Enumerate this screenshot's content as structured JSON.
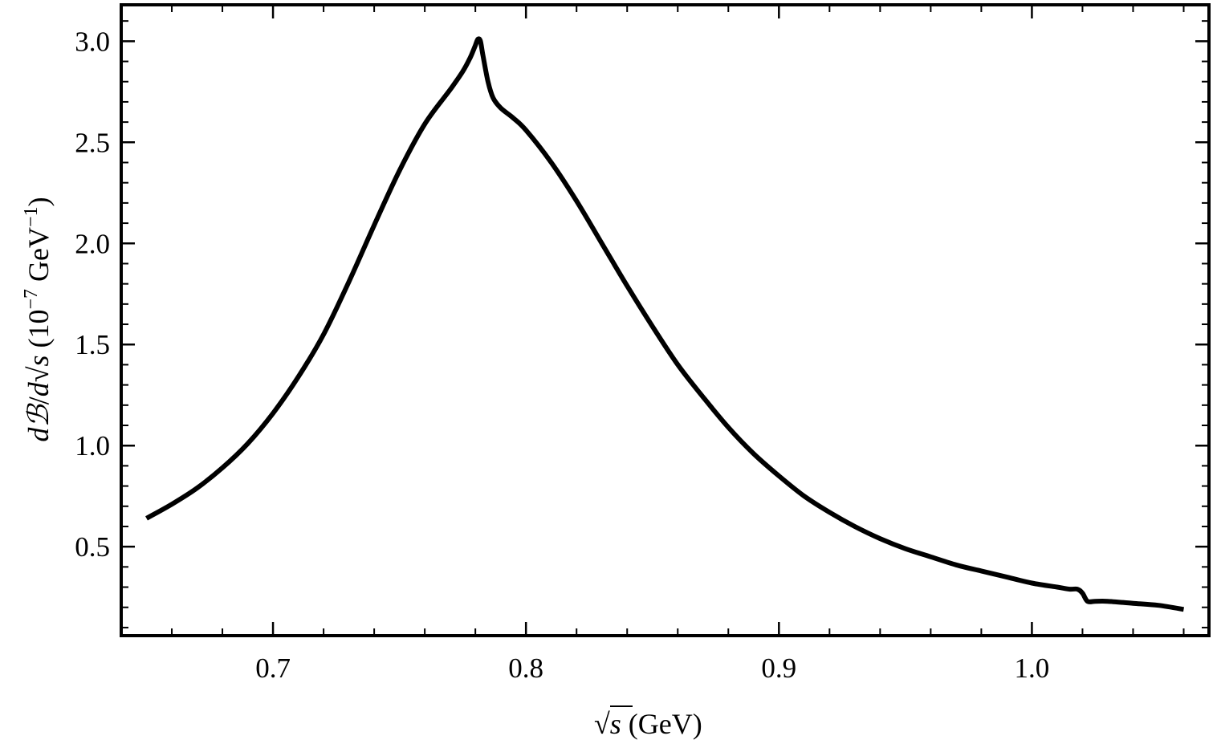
{
  "chart_data": {
    "type": "line",
    "title": "",
    "xlabel": {
      "radical": "√",
      "variable": "s",
      "unit": " (GeV)"
    },
    "ylabel": {
      "prefix_d": "d",
      "prefix_B": "ℬ",
      "slash": "/",
      "d2": "d",
      "radical": "√",
      "variable": "s",
      "unit_open": " (10",
      "unit_exp1": "−7",
      "unit_mid": " GeV",
      "unit_exp2": "−1",
      "unit_close": ")"
    },
    "xlim": [
      0.64,
      1.07
    ],
    "ylim": [
      0.06,
      3.18
    ],
    "x_ticks": [
      0.7,
      0.8,
      0.9,
      1.0
    ],
    "x_tick_labels": [
      "0.7",
      "0.8",
      "0.9",
      "1.0"
    ],
    "y_ticks": [
      0.5,
      1.0,
      1.5,
      2.0,
      2.5,
      3.0
    ],
    "y_tick_labels": [
      "0.5",
      "1.0",
      "1.5",
      "2.0",
      "2.5",
      "3.0"
    ],
    "x_minor_step": 0.02,
    "y_minor_step": 0.1,
    "grid": false,
    "legend": "none",
    "series": [
      {
        "color": "#000000",
        "x": [
          0.65,
          0.66,
          0.67,
          0.68,
          0.69,
          0.7,
          0.71,
          0.72,
          0.73,
          0.74,
          0.75,
          0.76,
          0.77,
          0.775,
          0.778,
          0.78,
          0.781,
          0.782,
          0.783,
          0.785,
          0.787,
          0.79,
          0.795,
          0.8,
          0.81,
          0.82,
          0.83,
          0.84,
          0.85,
          0.86,
          0.87,
          0.88,
          0.89,
          0.9,
          0.91,
          0.92,
          0.93,
          0.94,
          0.95,
          0.96,
          0.97,
          0.98,
          0.99,
          1.0,
          1.01,
          1.015,
          1.018,
          1.02,
          1.022,
          1.025,
          1.03,
          1.04,
          1.05,
          1.06
        ],
        "y": [
          0.64,
          0.71,
          0.79,
          0.89,
          1.01,
          1.16,
          1.34,
          1.55,
          1.81,
          2.09,
          2.36,
          2.59,
          2.76,
          2.85,
          2.92,
          2.98,
          3.01,
          3.0,
          2.93,
          2.8,
          2.72,
          2.67,
          2.62,
          2.56,
          2.4,
          2.21,
          2.0,
          1.79,
          1.59,
          1.4,
          1.24,
          1.09,
          0.96,
          0.85,
          0.75,
          0.67,
          0.6,
          0.54,
          0.49,
          0.45,
          0.41,
          0.38,
          0.35,
          0.32,
          0.3,
          0.29,
          0.29,
          0.27,
          0.23,
          0.23,
          0.23,
          0.22,
          0.21,
          0.19
        ]
      }
    ]
  }
}
